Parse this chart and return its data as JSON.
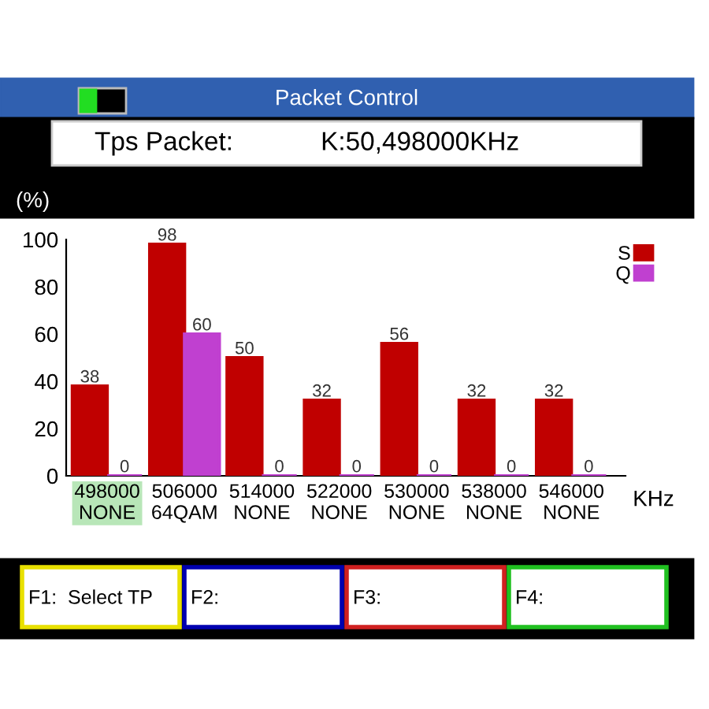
{
  "chart_data": {
    "type": "bar",
    "title": "Packet Control",
    "subtitle": "Tps Packet:            K:50,498000KHz",
    "ylabel": "(%)",
    "xlabel": "KHz",
    "categories": [
      "498000\nNONE",
      "506000\n64QAM",
      "514000\nNONE",
      "522000\nNONE",
      "530000\nNONE",
      "538000\nNONE",
      "546000\nNONE"
    ],
    "series": [
      {
        "name": "S",
        "color": "#c00000",
        "values": [
          38,
          98,
          50,
          32,
          56,
          32,
          32
        ]
      },
      {
        "name": "Q",
        "color": "#c040d0",
        "values": [
          0,
          60,
          0,
          0,
          0,
          0,
          0
        ]
      }
    ],
    "ylim": [
      0,
      100
    ],
    "yticks": [
      0,
      20,
      40,
      60,
      80,
      100
    ],
    "data_labels": true,
    "legend": "top right",
    "grid": false,
    "annotations": [
      "F1:  Select TP",
      "F2:",
      "F3:",
      "F4:"
    ]
  }
}
